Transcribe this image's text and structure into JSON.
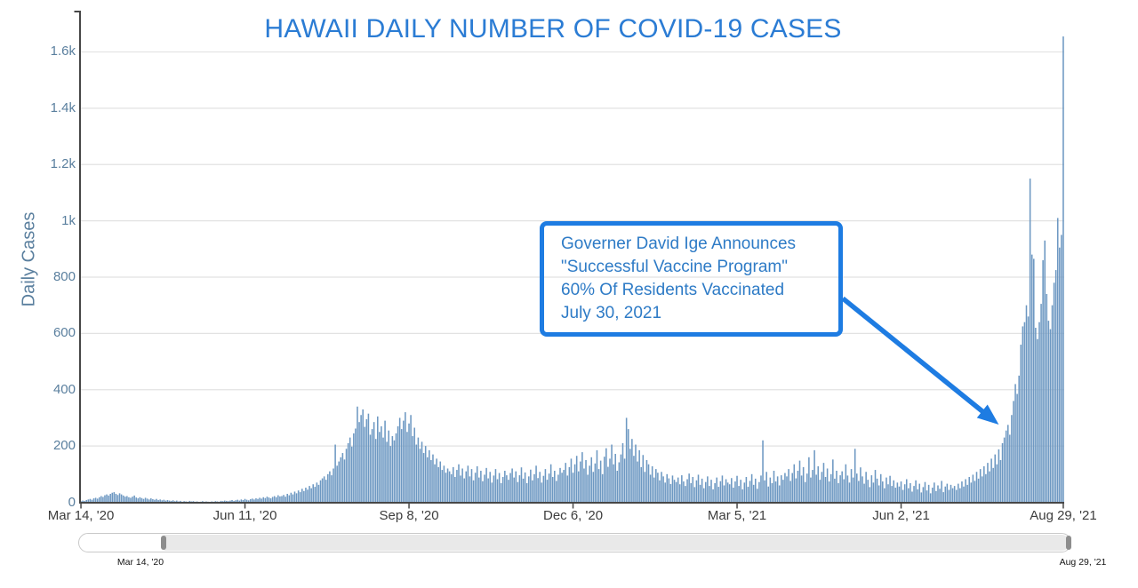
{
  "colors": {
    "title_blue": "#2b7cd4",
    "accent_blue": "#1e7ce2",
    "annotation_text_blue": "#2e7bc6",
    "axis_label_blue": "#5a7f9e",
    "bar_blue": "#6d98c2",
    "grid_gray": "#e2e2e2",
    "axis_gray": "#474747"
  },
  "chart_data": {
    "type": "bar",
    "title": "HAWAII DAILY NUMBER OF COVID-19 CASES",
    "xlabel": "",
    "ylabel": "Daily Cases",
    "x_start": "Mar 14, '20",
    "x_end": "Aug 29, '21",
    "x_tick_labels": [
      "Mar 14, '20",
      "Jun 11, '20",
      "Sep 8, '20",
      "Dec 6, '20",
      "Mar 5, '21",
      "Jun 2, '21",
      "Aug 29, '21"
    ],
    "x_tick_days": [
      0,
      89,
      178,
      267,
      356,
      445,
      533
    ],
    "y_tick_labels": [
      "0",
      "200",
      "400",
      "600",
      "800",
      "1k",
      "1.2k",
      "1.4k",
      "1.6k"
    ],
    "y_tick_values": [
      0,
      200,
      400,
      600,
      800,
      1000,
      1200,
      1400,
      1600
    ],
    "ylim": [
      0,
      1740
    ],
    "grid": true,
    "values": [
      4,
      6,
      5,
      8,
      10,
      12,
      9,
      14,
      16,
      13,
      18,
      22,
      19,
      25,
      28,
      24,
      30,
      34,
      36,
      30,
      26,
      32,
      28,
      24,
      20,
      22,
      18,
      16,
      20,
      24,
      17,
      14,
      18,
      15,
      12,
      16,
      13,
      10,
      14,
      11,
      9,
      12,
      8,
      10,
      7,
      9,
      6,
      8,
      6,
      5,
      7,
      4,
      6,
      3,
      5,
      2,
      4,
      3,
      2,
      5,
      3,
      4,
      2,
      3,
      1,
      2,
      4,
      2,
      3,
      2,
      1,
      3,
      2,
      4,
      3,
      2,
      5,
      4,
      6,
      5,
      4,
      6,
      8,
      5,
      7,
      9,
      6,
      10,
      8,
      12,
      9,
      7,
      11,
      13,
      10,
      14,
      12,
      16,
      13,
      18,
      15,
      20,
      17,
      14,
      19,
      22,
      18,
      25,
      21,
      22,
      26,
      20,
      30,
      25,
      34,
      28,
      38,
      32,
      42,
      36,
      48,
      40,
      52,
      45,
      58,
      50,
      64,
      55,
      70,
      62,
      78,
      85,
      92,
      80,
      100,
      110,
      96,
      120,
      205,
      130,
      145,
      160,
      175,
      152,
      190,
      210,
      230,
      198,
      245,
      262,
      340,
      285,
      310,
      330,
      268,
      295,
      315,
      240,
      260,
      285,
      225,
      305,
      250,
      270,
      230,
      290,
      215,
      255,
      200,
      235,
      220,
      245,
      270,
      300,
      260,
      290,
      320,
      250,
      280,
      310,
      235,
      265,
      205,
      230,
      190,
      215,
      175,
      200,
      160,
      185,
      150,
      170,
      135,
      155,
      125,
      145,
      115,
      130,
      105,
      120,
      110,
      100,
      125,
      90,
      115,
      135,
      95,
      120,
      85,
      110,
      130,
      92,
      118,
      78,
      105,
      128,
      88,
      112,
      75,
      98,
      122,
      85,
      108,
      70,
      95,
      118,
      82,
      104,
      68,
      90,
      112,
      96,
      80,
      104,
      120,
      88,
      110,
      72,
      96,
      124,
      84,
      106,
      68,
      92,
      116,
      78,
      100,
      130,
      86,
      108,
      70,
      94,
      118,
      80,
      102,
      135,
      90,
      112,
      76,
      98,
      122,
      105,
      115,
      140,
      95,
      125,
      155,
      105,
      135,
      165,
      110,
      145,
      178,
      120,
      150,
      98,
      130,
      160,
      108,
      138,
      185,
      118,
      148,
      100,
      162,
      192,
      126,
      155,
      205,
      135,
      172,
      112,
      142,
      170,
      210,
      155,
      300,
      260,
      190,
      225,
      165,
      205,
      145,
      185,
      125,
      168,
      108,
      150,
      135,
      98,
      128,
      88,
      118,
      105,
      78,
      108,
      92,
      70,
      100,
      85,
      65,
      95,
      80,
      72,
      88,
      64,
      96,
      74,
      58,
      82,
      102,
      68,
      90,
      54,
      78,
      98,
      62,
      84,
      50,
      72,
      92,
      58,
      80,
      46,
      68,
      88,
      55,
      75,
      95,
      60,
      82,
      70,
      64,
      86,
      52,
      74,
      94,
      58,
      80,
      46,
      70,
      90,
      55,
      76,
      100,
      62,
      84,
      48,
      72,
      95,
      220,
      78,
      108,
      56,
      88,
      68,
      112,
      74,
      92,
      60,
      96,
      80,
      104,
      92,
      118,
      76,
      104,
      135,
      85,
      112,
      148,
      95,
      125,
      72,
      102,
      160,
      88,
      115,
      185,
      98,
      128,
      80,
      108,
      140,
      90,
      120,
      74,
      100,
      152,
      84,
      112,
      68,
      96,
      110,
      82,
      135,
      95,
      70,
      118,
      88,
      190,
      102,
      76,
      124,
      92,
      66,
      108,
      80,
      54,
      96,
      70,
      115,
      84,
      60,
      100,
      74,
      50,
      88,
      64,
      94,
      58,
      78,
      52,
      70,
      56,
      74,
      44,
      64,
      82,
      50,
      68,
      38,
      58,
      78,
      46,
      66,
      35,
      54,
      72,
      42,
      62,
      32,
      52,
      70,
      40,
      60,
      48,
      76,
      36,
      56,
      66,
      44,
      62,
      50,
      58,
      44,
      66,
      50,
      74,
      56,
      82,
      62,
      90,
      70,
      98,
      76,
      108,
      84,
      118,
      92,
      128,
      100,
      140,
      110,
      155,
      122,
      170,
      135,
      188,
      150,
      210,
      230,
      255,
      275,
      240,
      310,
      360,
      420,
      385,
      450,
      560,
      625,
      640,
      700,
      660,
      1150,
      880,
      865,
      620,
      580,
      640,
      705,
      860,
      930,
      740,
      645,
      615,
      700,
      780,
      825,
      1010,
      905,
      950,
      1655
    ],
    "annotation": {
      "lines": [
        "Governer David Ige Announces",
        "\"Successful Vaccine Program\"",
        "60% Of Residents Vaccinated",
        "July 30, 2021"
      ],
      "arrow_tip": {
        "day": 498,
        "value": 276
      }
    }
  },
  "rangeslider": {
    "start_label": "Mar 14, '20",
    "end_label": "Aug 29, '21"
  }
}
